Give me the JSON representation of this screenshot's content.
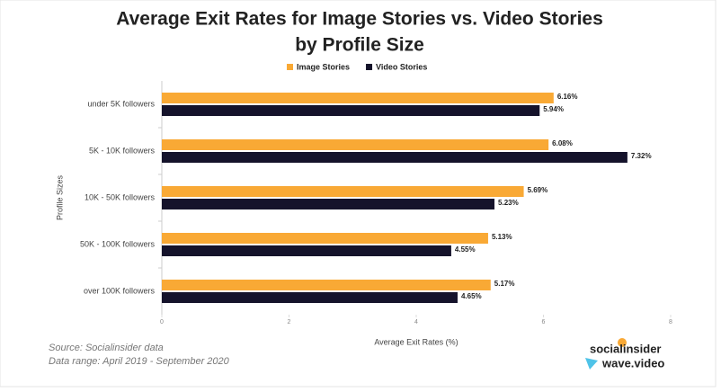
{
  "chart_data": {
    "type": "hbar",
    "title": [
      "Average Exit Rates for Image Stories vs. Video Stories",
      "by Profile Size"
    ],
    "categories": [
      "under 5K followers",
      "5K - 10K followers",
      "10K - 50K followers",
      "50K - 100K followers",
      "over 100K followers"
    ],
    "series": [
      {
        "name": "Image Stories",
        "color": "#f9a935",
        "values": [
          6.16,
          6.08,
          5.69,
          5.13,
          5.17
        ],
        "value_labels": [
          "6.16%",
          "6.08%",
          "5.69%",
          "5.13%",
          "5.17%"
        ]
      },
      {
        "name": "Video Stories",
        "color": "#15132b",
        "values": [
          5.94,
          7.32,
          5.23,
          4.55,
          4.65
        ],
        "value_labels": [
          "5.94%",
          "7.32%",
          "5.23%",
          "4.55%",
          "4.65%"
        ]
      }
    ],
    "xlim": [
      0,
      8
    ],
    "xticks": [
      0,
      2,
      4,
      6,
      8
    ],
    "x_label": "Average Exit Rates (%)",
    "y_label": "Profile Sizes",
    "source": [
      "Source: Socialinsider data",
      "Data range: April 2019 - September 2020"
    ],
    "logos": [
      "socialinsider",
      "wave.video"
    ]
  }
}
